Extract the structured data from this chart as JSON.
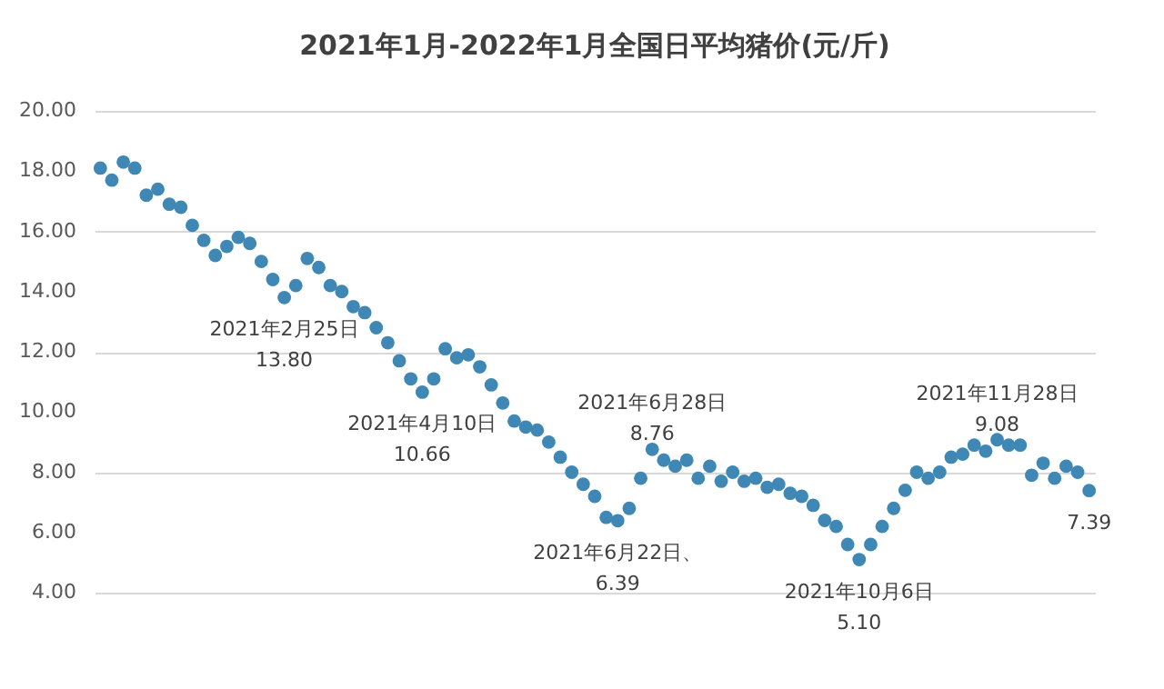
{
  "chart_data": {
    "type": "scatter",
    "title": "2021年1月-2022年1月全国日平均猪价(元/斤)",
    "marker": "circle",
    "grid": "y",
    "tick_labels": "y",
    "categories": [
      null,
      null,
      null,
      null,
      null,
      null,
      null,
      null,
      null,
      null,
      null,
      null,
      null,
      null,
      null,
      null,
      null,
      null,
      null,
      null,
      null,
      null,
      null,
      null,
      null,
      null,
      null,
      null,
      null,
      null,
      null,
      null,
      null,
      null,
      null,
      null,
      null,
      null,
      null,
      null,
      null,
      null,
      null,
      null,
      null,
      null,
      null,
      null,
      null,
      null,
      null,
      null,
      null,
      null,
      null,
      null,
      null,
      null,
      null,
      null,
      null,
      null,
      null,
      null,
      null,
      null,
      null,
      null,
      null,
      null,
      null,
      null,
      null,
      null,
      null,
      null,
      null,
      null,
      null,
      null,
      null,
      null,
      null,
      null,
      null,
      null,
      null
    ],
    "series": [
      {
        "color": "#3f88b5",
        "values": [
          18.1,
          17.7,
          18.3,
          18.1,
          17.2,
          17.4,
          16.9,
          16.8,
          16.2,
          15.7,
          15.2,
          15.5,
          15.8,
          15.6,
          15.0,
          14.4,
          13.8,
          14.2,
          15.1,
          14.8,
          14.2,
          14.0,
          13.5,
          13.3,
          12.8,
          12.3,
          11.7,
          11.1,
          10.66,
          11.1,
          12.1,
          11.8,
          11.9,
          11.5,
          10.9,
          10.3,
          9.7,
          9.5,
          9.4,
          9.0,
          8.5,
          8.0,
          7.6,
          7.2,
          6.5,
          6.39,
          6.8,
          7.8,
          8.76,
          8.4,
          8.2,
          8.4,
          7.8,
          8.2,
          7.7,
          8.0,
          7.7,
          7.8,
          7.5,
          7.6,
          7.3,
          7.2,
          6.9,
          6.4,
          6.2,
          5.6,
          5.1,
          5.6,
          6.2,
          6.8,
          7.4,
          8.0,
          7.8,
          8.0,
          8.5,
          8.6,
          8.9,
          8.7,
          9.08,
          8.9,
          8.9,
          7.9,
          8.3,
          7.8,
          8.2,
          8.0,
          7.39
        ]
      }
    ],
    "ylim": [
      4,
      20
    ],
    "yticks": [
      {
        "value": 4,
        "label": "4.00"
      },
      {
        "value": 6,
        "label": "6.00"
      },
      {
        "value": 8,
        "label": "8.00"
      },
      {
        "value": 10,
        "label": "10.00"
      },
      {
        "value": 12,
        "label": "12.00"
      },
      {
        "value": 14,
        "label": "14.00"
      },
      {
        "value": 16,
        "label": "16.00"
      },
      {
        "value": 18,
        "label": "18.00"
      },
      {
        "value": 20,
        "label": "20.00"
      }
    ],
    "annotations": [
      {
        "text": "2021年2月25日\n13.80",
        "y": 13.8
      },
      {
        "text": "2021年4月10日\n10.66",
        "y": 10.66
      },
      {
        "text": "2021年6月28日\n8.76",
        "y": 8.76
      },
      {
        "text": "2021年6月22日、\n6.39",
        "y": 6.39
      },
      {
        "text": "2021年10月6日\n5.10",
        "y": 5.1
      },
      {
        "text": "2021年11月28日\n9.08",
        "y": 9.08
      },
      {
        "text": "7.39",
        "y": 7.39
      }
    ]
  }
}
